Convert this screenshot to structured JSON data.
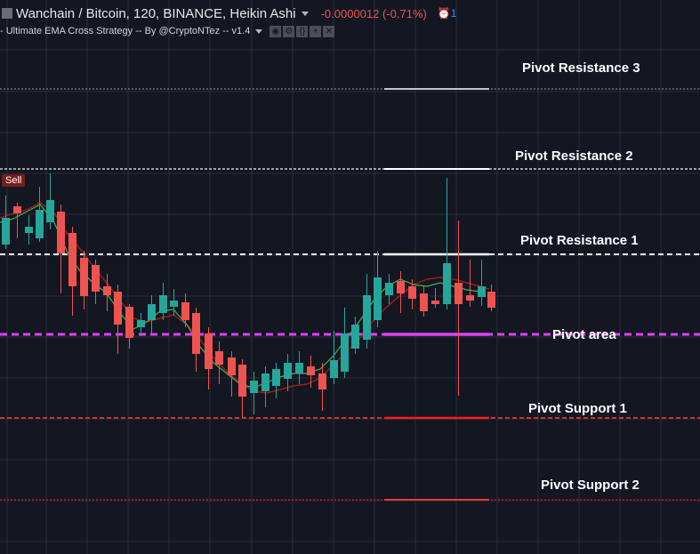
{
  "legend": {
    "title": "Wanchain / Bitcoin, 120, BINANCE, Heikin Ashi",
    "change": "-0.0000012 (-0.71%)",
    "alarm_count": "1"
  },
  "study": {
    "label": "- Ultimate EMA Cross Strategy -- By @CryptoNTez -- v1.4",
    "buttons": [
      "◉",
      "⚙",
      "{}",
      "+",
      "✕"
    ]
  },
  "signal": "Sell",
  "pivots": {
    "r3": "Pivot Resistance 3",
    "r2": "Pivot Resistance 2",
    "r1": "Pivot Resistance 1",
    "pp": "Pivot area",
    "s1": "Pivot Support 1",
    "s2": "Pivot Support 2"
  },
  "colors": {
    "background": "#131722",
    "grid": "#2a2e39",
    "up": "#26a69a",
    "down": "#ef5350",
    "pivot_area": "#e040fb",
    "support": "#d32f2f",
    "resistance": "#e0e0e0",
    "ema_fast": "#4caf50",
    "ema_slow": "#b71c1c"
  }
}
